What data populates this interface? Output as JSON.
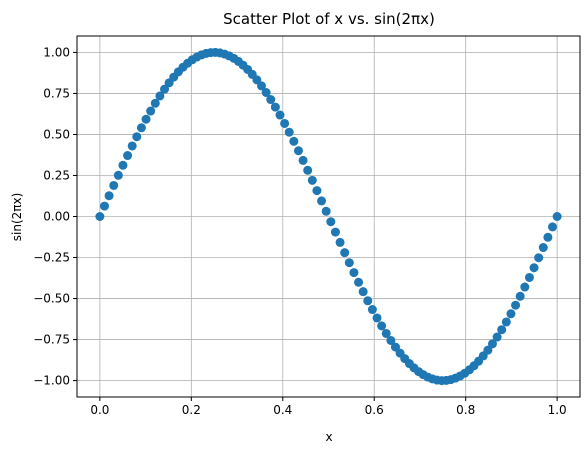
{
  "chart_data": {
    "type": "scatter",
    "title": "Scatter Plot of x vs. sin(2πx)",
    "xlabel": "x",
    "ylabel": "sin(2πx)",
    "xlim": [
      -0.05,
      1.05
    ],
    "ylim": [
      -1.1,
      1.1
    ],
    "grid": true,
    "marker_color": "#1f77b4",
    "x_ticks": [
      0.0,
      0.2,
      0.4,
      0.6,
      0.8,
      1.0
    ],
    "x_tick_labels": [
      "0.0",
      "0.2",
      "0.4",
      "0.6",
      "0.8",
      "1.0"
    ],
    "y_ticks": [
      -1.0,
      -0.75,
      -0.5,
      -0.25,
      0.0,
      0.25,
      0.5,
      0.75,
      1.0
    ],
    "y_tick_labels": [
      "−1.00",
      "−0.75",
      "−0.50",
      "−0.25",
      "0.00",
      "0.25",
      "0.50",
      "0.75",
      "1.00"
    ],
    "series": [
      {
        "x": [
          0.0,
          0.0101,
          0.0202,
          0.0303,
          0.0404,
          0.0505,
          0.0606,
          0.0707,
          0.0808,
          0.0909,
          0.101,
          0.1111,
          0.1212,
          0.1313,
          0.1414,
          0.1515,
          0.1616,
          0.1717,
          0.1818,
          0.1919,
          0.202,
          0.2121,
          0.2222,
          0.2323,
          0.2424,
          0.2525,
          0.2626,
          0.2727,
          0.2828,
          0.2929,
          0.303,
          0.3131,
          0.3232,
          0.3333,
          0.3434,
          0.3535,
          0.3636,
          0.3737,
          0.3838,
          0.3939,
          0.404,
          0.4141,
          0.4242,
          0.4343,
          0.4444,
          0.4545,
          0.4646,
          0.4747,
          0.4848,
          0.4949,
          0.5051,
          0.5152,
          0.5253,
          0.5354,
          0.5455,
          0.5556,
          0.5657,
          0.5758,
          0.5859,
          0.596,
          0.6061,
          0.6162,
          0.6263,
          0.6364,
          0.6465,
          0.6566,
          0.6667,
          0.6768,
          0.6869,
          0.697,
          0.7071,
          0.7172,
          0.7273,
          0.7374,
          0.7475,
          0.7576,
          0.7677,
          0.7778,
          0.7879,
          0.798,
          0.8081,
          0.8182,
          0.8283,
          0.8384,
          0.8485,
          0.8586,
          0.8687,
          0.8788,
          0.8889,
          0.899,
          0.9091,
          0.9192,
          0.9293,
          0.9394,
          0.9495,
          0.9596,
          0.9697,
          0.9798,
          0.9899,
          1.0
        ],
        "y": [
          0.0,
          0.0634,
          0.1266,
          0.1893,
          0.2511,
          0.312,
          0.3717,
          0.4298,
          0.4862,
          0.5406,
          0.5929,
          0.6428,
          0.6901,
          0.7346,
          0.7761,
          0.8146,
          0.8497,
          0.8815,
          0.9096,
          0.9341,
          0.9549,
          0.9718,
          0.9848,
          0.9938,
          0.9989,
          0.9999,
          0.9969,
          0.9898,
          0.9788,
          0.9639,
          0.945,
          0.9224,
          0.896,
          0.866,
          0.8326,
          0.7958,
          0.7557,
          0.7127,
          0.6668,
          0.6182,
          0.5671,
          0.5137,
          0.4582,
          0.4009,
          0.342,
          0.2817,
          0.2203,
          0.158,
          0.0951,
          0.0317,
          -0.0317,
          -0.0951,
          -0.158,
          -0.2203,
          -0.2817,
          -0.342,
          -0.4009,
          -0.4582,
          -0.5137,
          -0.5671,
          -0.6182,
          -0.6668,
          -0.7127,
          -0.7557,
          -0.7958,
          -0.8326,
          -0.866,
          -0.896,
          -0.9224,
          -0.945,
          -0.9639,
          -0.9788,
          -0.9898,
          -0.9969,
          -0.9999,
          -0.9989,
          -0.9938,
          -0.9848,
          -0.9718,
          -0.9549,
          -0.9341,
          -0.9096,
          -0.8815,
          -0.8497,
          -0.8146,
          -0.7761,
          -0.7346,
          -0.6901,
          -0.6428,
          -0.5929,
          -0.5406,
          -0.4862,
          -0.4298,
          -0.3717,
          -0.312,
          -0.2511,
          -0.1893,
          -0.1266,
          -0.0634,
          0.0
        ]
      }
    ]
  }
}
